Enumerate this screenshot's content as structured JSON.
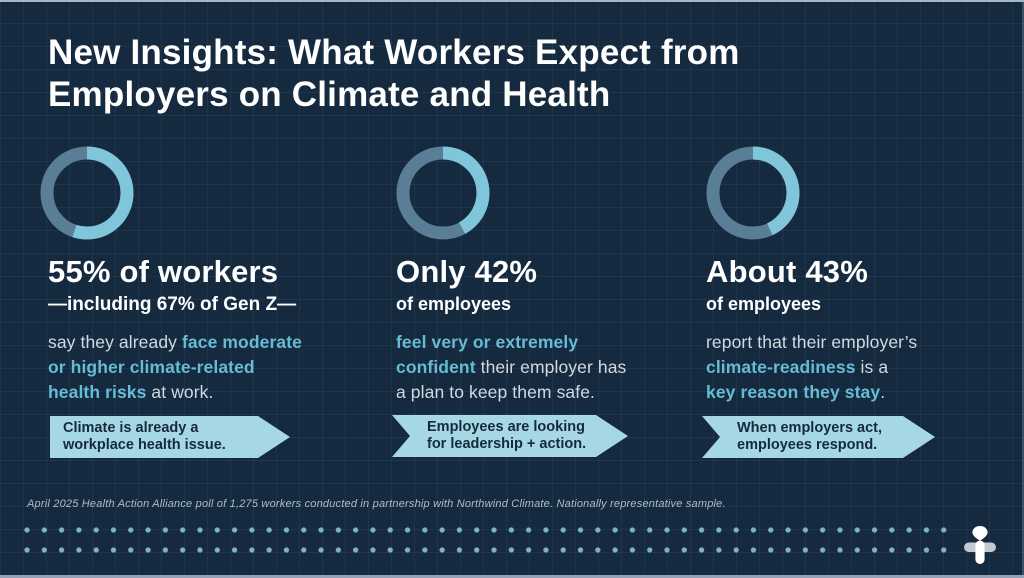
{
  "title": "New Insights: What Workers Expect from\nEmployers on Climate and Health",
  "columns": [
    {
      "percent": 55,
      "stat": "55% of workers",
      "substat": "—including 67% of Gen Z—",
      "body": [
        {
          "text": "say they already "
        },
        {
          "text": "face moderate\nor higher climate-related\nhealth risks",
          "em": true
        },
        {
          "text": " at work."
        }
      ],
      "callout": "Climate is already a\nworkplace health issue."
    },
    {
      "percent": 42,
      "stat": "Only 42%",
      "substat": "of employees",
      "body": [
        {
          "text": "feel very or extremely\nconfident",
          "em": true
        },
        {
          "text": " their employer has\na plan to keep them safe."
        }
      ],
      "callout": "Employees are looking\nfor leadership + action."
    },
    {
      "percent": 43,
      "stat": "About 43%",
      "substat": "of employees",
      "body": [
        {
          "text": "report that their employer’s\n"
        },
        {
          "text": "climate-readiness",
          "em": true
        },
        {
          "text": " is a\n"
        },
        {
          "text": "key reason they stay",
          "em": true
        },
        {
          "text": "."
        }
      ],
      "callout": "When employers act,\nemployees respond."
    }
  ],
  "footnote": "April 2025 Health Action Alliance poll of 1,275 workers conducted in partnership with Northwind Climate. Nationally representative sample.",
  "logo_name": "health-action-alliance-logo",
  "colors": {
    "background": "#152A3F",
    "grid_line": "#24405A",
    "donut_value": "#7FC6DA",
    "donut_remainder": "#5A7E95",
    "banner_fill": "#A6D8E4",
    "banner_text": "#16293D",
    "emphasis_text": "#66BCD4",
    "body_text": "#D3D9E0",
    "title_text": "#FFFFFF",
    "footnote_text": "#AFBDCB",
    "dot_color": "#79B4C9"
  },
  "chart_data": [
    {
      "type": "pie",
      "subtype": "donut",
      "title": "55% of workers —including 67% of Gen Z— say they already face moderate or higher climate-related health risks at work.",
      "segment_labels": [
        "share",
        "remainder"
      ],
      "values": [
        55,
        45
      ],
      "colors": [
        "#7FC6DA",
        "#5A7E95"
      ],
      "start_angle_deg": 0,
      "direction": "clockwise"
    },
    {
      "type": "pie",
      "subtype": "donut",
      "title": "Only 42% of employees feel very or extremely confident their employer has a plan to keep them safe.",
      "segment_labels": [
        "share",
        "remainder"
      ],
      "values": [
        42,
        58
      ],
      "colors": [
        "#7FC6DA",
        "#5A7E95"
      ],
      "start_angle_deg": 0,
      "direction": "clockwise"
    },
    {
      "type": "pie",
      "subtype": "donut",
      "title": "About 43% of employees report that their employer's climate-readiness is a key reason they stay.",
      "segment_labels": [
        "share",
        "remainder"
      ],
      "values": [
        43,
        57
      ],
      "colors": [
        "#7FC6DA",
        "#5A7E95"
      ],
      "start_angle_deg": 0,
      "direction": "clockwise"
    }
  ]
}
